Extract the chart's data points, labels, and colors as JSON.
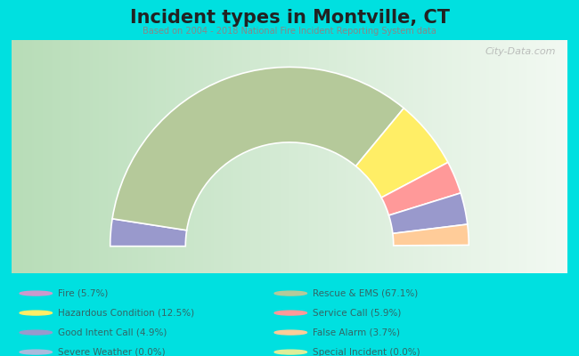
{
  "title": "Incident types in Montville, CT",
  "subtitle": "Based on 2004 - 2018 National Fire Incident Reporting System data",
  "background_color": "#00e0e0",
  "chart_bg_gradient_left": "#c8e8c8",
  "chart_bg_gradient_right": "#f0f8f0",
  "watermark": "City-Data.com",
  "segments": [
    {
      "name": "Good Intent Call",
      "pct": 4.9,
      "color": "#9999cc"
    },
    {
      "name": "Rescue & EMS",
      "pct": 67.1,
      "color": "#b5c99a"
    },
    {
      "name": "Hazardous Condition",
      "pct": 12.5,
      "color": "#ffee66"
    },
    {
      "name": "Service Call",
      "pct": 5.9,
      "color": "#ff9999"
    },
    {
      "name": "Fire",
      "pct": 5.7,
      "color": "#9999cc"
    },
    {
      "name": "False Alarm",
      "pct": 3.7,
      "color": "#ffcc99"
    }
  ],
  "legend_left": [
    {
      "label": "Fire (5.7%)",
      "color": "#cc99cc"
    },
    {
      "label": "Hazardous Condition (12.5%)",
      "color": "#ffee66"
    },
    {
      "label": "Good Intent Call (4.9%)",
      "color": "#9999cc"
    },
    {
      "label": "Severe Weather (0.0%)",
      "color": "#aabbdd"
    }
  ],
  "legend_right": [
    {
      "label": "Rescue & EMS (67.1%)",
      "color": "#b5c99a"
    },
    {
      "label": "Service Call (5.9%)",
      "color": "#ff9999"
    },
    {
      "label": "False Alarm (3.7%)",
      "color": "#ffcc99"
    },
    {
      "label": "Special Incident (0.0%)",
      "color": "#ddee99"
    }
  ],
  "outer_r": 1.0,
  "inner_r": 0.58,
  "title_fontsize": 15,
  "subtitle_fontsize": 7,
  "legend_fontsize": 7.5,
  "text_color": "#336666",
  "title_color": "#222222",
  "subtitle_color": "#888888",
  "watermark_color": "#aaaaaa"
}
